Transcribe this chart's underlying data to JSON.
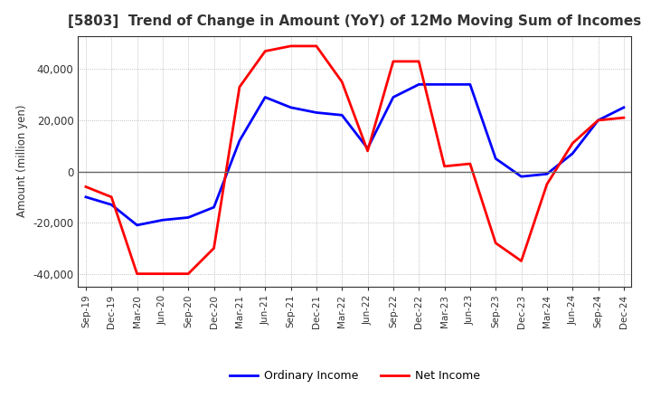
{
  "title": "[5803]  Trend of Change in Amount (YoY) of 12Mo Moving Sum of Incomes",
  "ylabel": "Amount (million yen)",
  "x_labels": [
    "Sep-19",
    "Dec-19",
    "Mar-20",
    "Jun-20",
    "Sep-20",
    "Dec-20",
    "Mar-21",
    "Jun-21",
    "Sep-21",
    "Dec-21",
    "Mar-22",
    "Jun-22",
    "Sep-22",
    "Dec-22",
    "Mar-23",
    "Jun-23",
    "Sep-23",
    "Dec-23",
    "Mar-24",
    "Jun-24",
    "Sep-24",
    "Dec-24"
  ],
  "ordinary_income": [
    -10000,
    -13000,
    -21000,
    -19000,
    -18000,
    -14000,
    12000,
    29000,
    25000,
    23000,
    22000,
    9000,
    29000,
    34000,
    34000,
    34000,
    5000,
    -2000,
    -1000,
    7000,
    20000,
    25000
  ],
  "net_income": [
    -6000,
    -10000,
    -40000,
    -40000,
    -40000,
    -30000,
    33000,
    47000,
    49000,
    49000,
    35000,
    8000,
    43000,
    43000,
    2000,
    3000,
    -28000,
    -35000,
    -5000,
    11000,
    20000,
    21000
  ],
  "ordinary_color": "#0000FF",
  "net_color": "#FF0000",
  "ylim": [
    -45000,
    53000
  ],
  "yticks": [
    -40000,
    -20000,
    0,
    20000,
    40000
  ],
  "background_color": "#FFFFFF",
  "grid_color": "#999999",
  "title_color": "#333333"
}
